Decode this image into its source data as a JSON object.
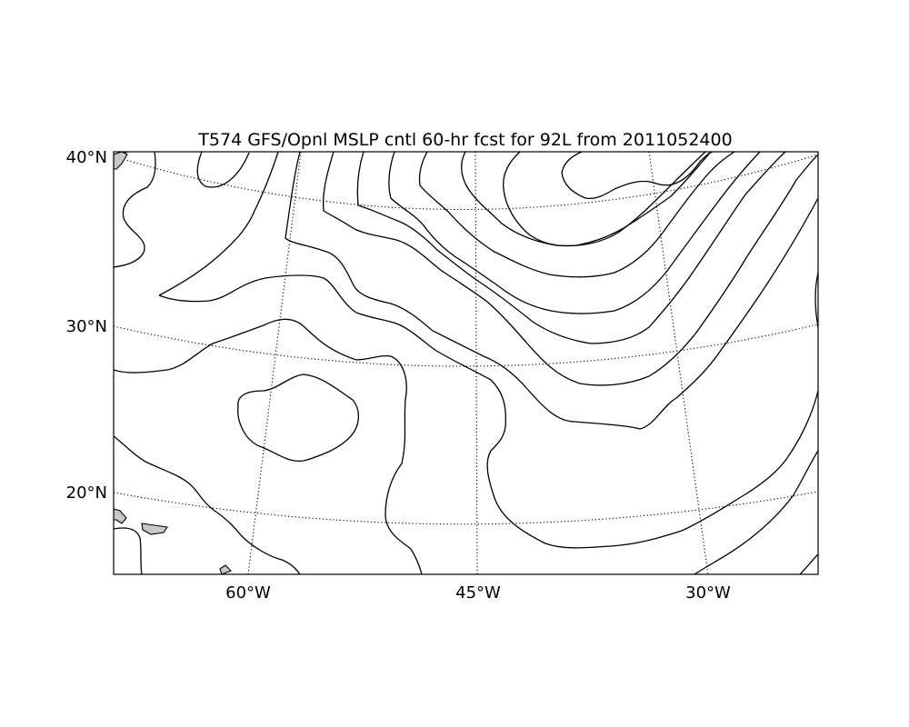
{
  "map": {
    "title": "T574 GFS/Opnl MSLP cntl 60-hr fcst for 92L from 2011052400",
    "lat_labels": [
      "40°N",
      "30°N",
      "20°N"
    ],
    "lon_labels": [
      "60°W",
      "45°W",
      "30°W"
    ],
    "land_color": "#c8c8c8",
    "contour_color": "#000000",
    "graticule_style": "dotted"
  }
}
